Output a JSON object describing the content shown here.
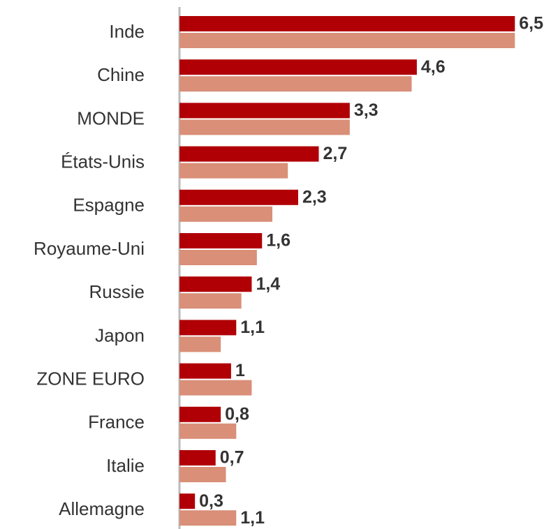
{
  "chart_data": {
    "type": "bar",
    "orientation": "horizontal",
    "categories": [
      "Inde",
      "Chine",
      "MONDE",
      "États-Unis",
      "Espagne",
      "Royaume-Uni",
      "Russie",
      "Japon",
      "ZONE EURO",
      "France",
      "Italie",
      "Allemagne"
    ],
    "series": [
      {
        "color": "#b00006",
        "values": [
          6.5,
          4.6,
          3.3,
          2.7,
          2.3,
          1.6,
          1.4,
          1.1,
          1,
          0.8,
          0.7,
          0.3
        ],
        "value_labels": [
          "6,5",
          "4,6",
          "3,3",
          "2,7",
          "2,3",
          "1,6",
          "1,4",
          "1,1",
          "1",
          "0,8",
          "0,7",
          "0,3"
        ]
      },
      {
        "color": "#d98f78",
        "values": [
          6.5,
          4.5,
          3.3,
          2.1,
          1.8,
          1.5,
          1.2,
          0.8,
          1.4,
          1.1,
          0.9,
          1.1
        ],
        "value_labels": [
          null,
          null,
          null,
          null,
          null,
          null,
          null,
          null,
          null,
          null,
          null,
          "1,1"
        ]
      }
    ],
    "xlim": [
      0,
      7.2
    ]
  }
}
